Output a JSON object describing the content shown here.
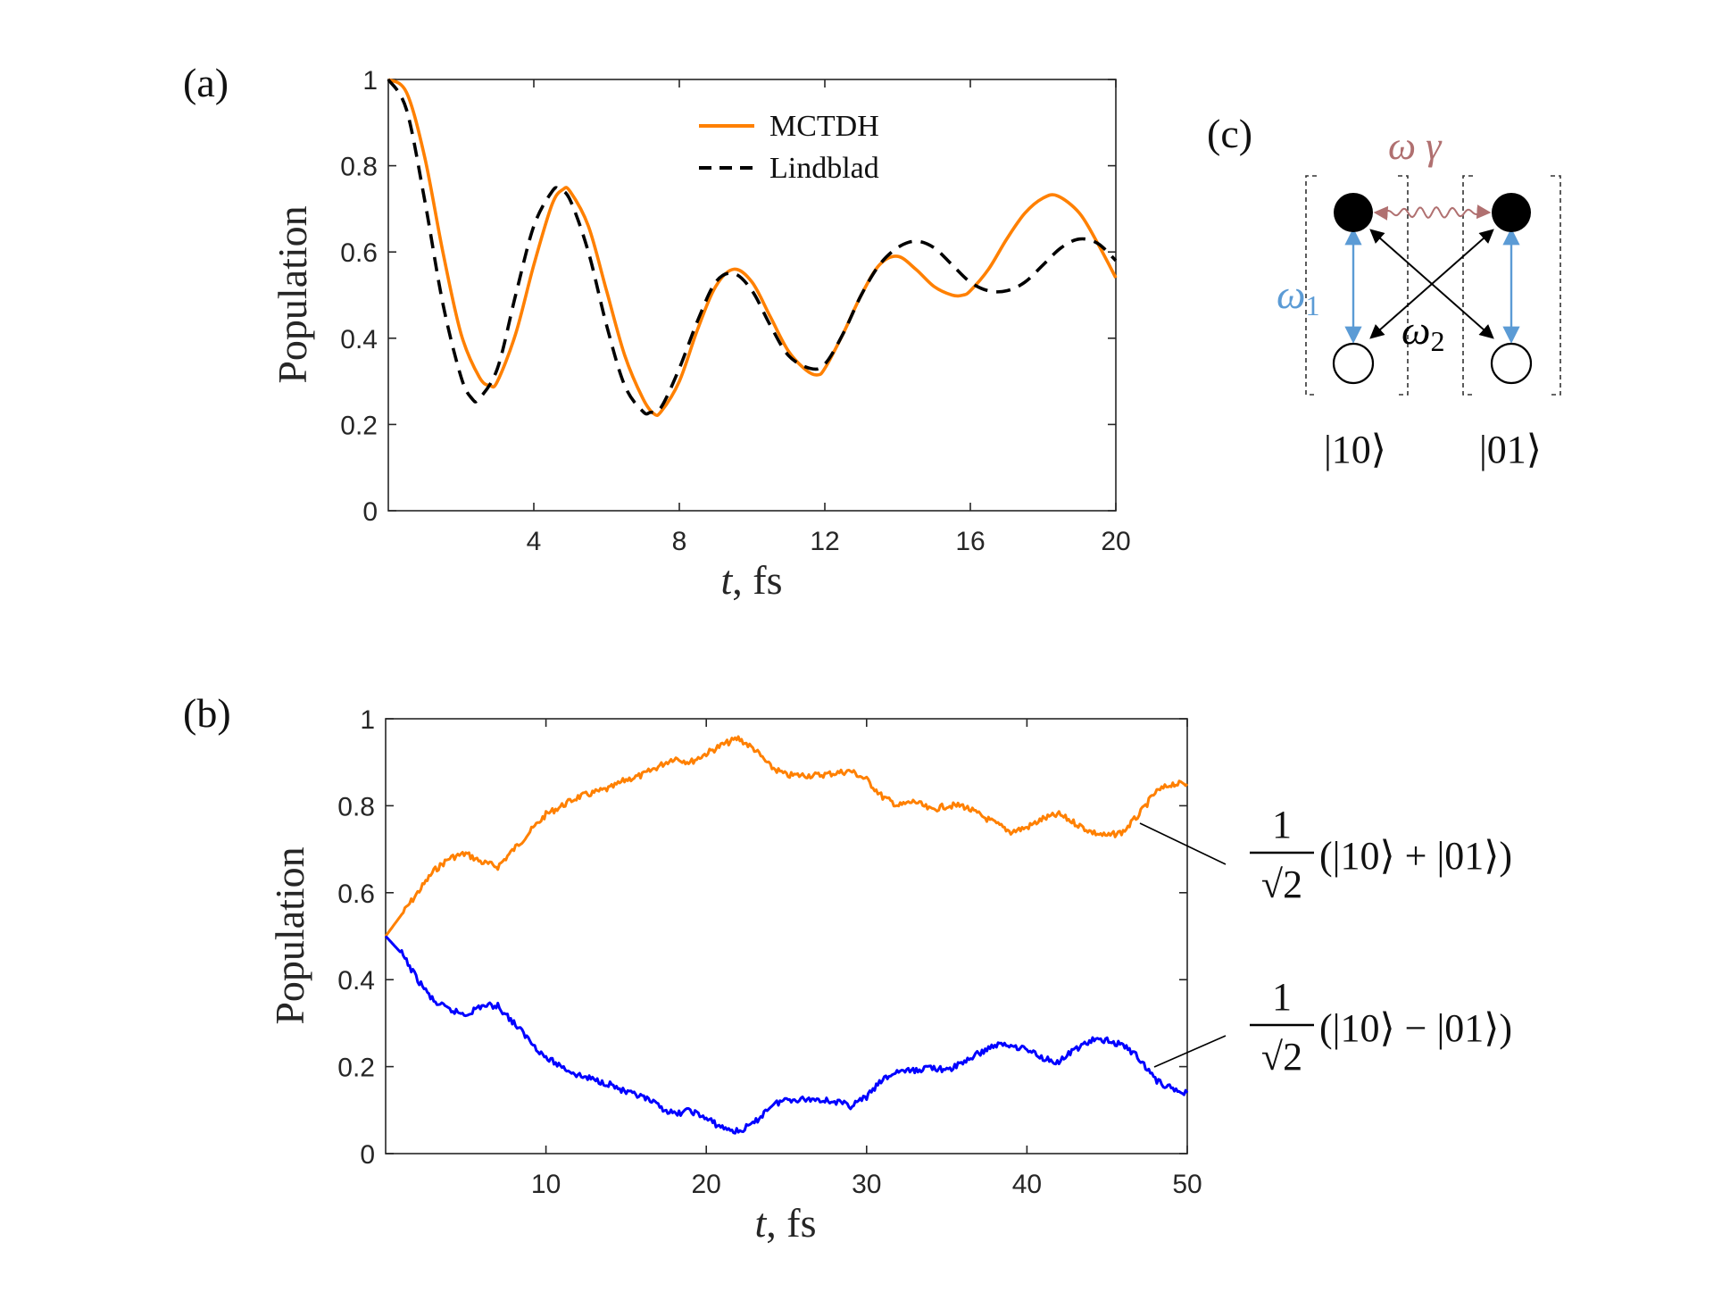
{
  "colors": {
    "mctdh": "#FF8000",
    "lindblad": "#000000",
    "symmetric": "#FF8000",
    "antisymmetric": "#0000FF",
    "omega1": "#5B9BD5",
    "omega_gamma": "#B07070",
    "omega2": "#000000"
  },
  "chart_data": [
    {
      "id": "a",
      "type": "line",
      "panel_label": "(a)",
      "xlabel": "t, fs",
      "xlabel_var": "t",
      "xlabel_unit": "fs",
      "ylabel": "Population",
      "xlim": [
        0,
        20
      ],
      "ylim": [
        0,
        1
      ],
      "xticks": [
        4,
        8,
        12,
        16,
        20
      ],
      "yticks": [
        0,
        0.2,
        0.4,
        0.6,
        0.8,
        1
      ],
      "xtick_labels": [
        "4",
        "8",
        "12",
        "16",
        "20"
      ],
      "ytick_labels": [
        "0",
        "0.2",
        "0.4",
        "0.6",
        "0.8",
        "1"
      ],
      "legend": [
        "MCTDH",
        "Lindblad"
      ],
      "legend_position": "top-center",
      "series": [
        {
          "name": "MCTDH",
          "style": "solid",
          "x": [
            0,
            0.5,
            1,
            1.5,
            2,
            2.5,
            2.8,
            3,
            3.5,
            4,
            4.5,
            4.8,
            5,
            5.5,
            6,
            6.5,
            7,
            7.3,
            7.5,
            8,
            8.5,
            9,
            9.5,
            10,
            10.5,
            11,
            11.5,
            11.8,
            12,
            12.5,
            13,
            13.5,
            14,
            14.5,
            15,
            15.5,
            15.8,
            16,
            16.5,
            17,
            17.5,
            18,
            18.4,
            19,
            19.5,
            20
          ],
          "y": [
            1.0,
            0.97,
            0.82,
            0.6,
            0.41,
            0.31,
            0.29,
            0.3,
            0.41,
            0.57,
            0.71,
            0.745,
            0.74,
            0.66,
            0.51,
            0.36,
            0.26,
            0.225,
            0.23,
            0.3,
            0.42,
            0.52,
            0.56,
            0.53,
            0.45,
            0.37,
            0.325,
            0.315,
            0.33,
            0.41,
            0.5,
            0.57,
            0.59,
            0.56,
            0.52,
            0.5,
            0.5,
            0.51,
            0.56,
            0.63,
            0.69,
            0.725,
            0.73,
            0.69,
            0.62,
            0.54
          ]
        },
        {
          "name": "Lindblad",
          "style": "dashed",
          "x": [
            0,
            0.5,
            1,
            1.5,
            2,
            2.3,
            2.5,
            3,
            3.5,
            4,
            4.5,
            4.7,
            5,
            5.5,
            6,
            6.5,
            7,
            7.2,
            7.5,
            8,
            8.5,
            9,
            9.5,
            10,
            10.5,
            11,
            11.6,
            12,
            12.5,
            13,
            13.5,
            14,
            14.5,
            15,
            15.5,
            16,
            16.5,
            17,
            17.5,
            18,
            18.5,
            19,
            19.5,
            20
          ],
          "y": [
            1.0,
            0.93,
            0.72,
            0.48,
            0.31,
            0.26,
            0.26,
            0.33,
            0.5,
            0.66,
            0.74,
            0.745,
            0.72,
            0.6,
            0.43,
            0.29,
            0.23,
            0.228,
            0.24,
            0.33,
            0.44,
            0.53,
            0.55,
            0.51,
            0.43,
            0.36,
            0.33,
            0.34,
            0.41,
            0.5,
            0.57,
            0.61,
            0.625,
            0.61,
            0.57,
            0.53,
            0.51,
            0.51,
            0.53,
            0.57,
            0.61,
            0.63,
            0.62,
            0.58
          ]
        }
      ]
    },
    {
      "id": "b",
      "type": "line",
      "panel_label": "(b)",
      "xlabel": "t, fs",
      "xlabel_var": "t",
      "xlabel_unit": "fs",
      "ylabel": "Population",
      "xlim": [
        0,
        50
      ],
      "ylim": [
        0,
        1
      ],
      "xticks": [
        10,
        20,
        30,
        40,
        50
      ],
      "yticks": [
        0,
        0.2,
        0.4,
        0.6,
        0.8,
        1
      ],
      "xtick_labels": [
        "10",
        "20",
        "30",
        "40",
        "50"
      ],
      "ytick_labels": [
        "0",
        "0.2",
        "0.4",
        "0.6",
        "0.8",
        "1"
      ],
      "series": [
        {
          "name": "1/√2 (|10⟩ + |01⟩)",
          "style": "solid",
          "x": [
            0,
            1,
            2,
            3,
            4,
            5,
            6,
            7,
            8,
            9,
            10,
            11,
            12,
            13,
            14,
            15,
            16,
            17,
            18,
            19,
            20,
            21,
            22,
            23,
            24,
            25,
            26,
            27,
            28,
            29,
            30,
            31,
            32,
            33,
            34,
            35,
            36,
            37,
            38,
            39,
            40,
            41,
            42,
            43,
            44,
            45,
            46,
            47,
            48,
            49,
            50
          ],
          "y": [
            0.5,
            0.55,
            0.6,
            0.65,
            0.68,
            0.69,
            0.67,
            0.66,
            0.7,
            0.74,
            0.78,
            0.8,
            0.82,
            0.83,
            0.84,
            0.86,
            0.87,
            0.89,
            0.91,
            0.9,
            0.92,
            0.94,
            0.955,
            0.93,
            0.89,
            0.87,
            0.87,
            0.87,
            0.875,
            0.88,
            0.86,
            0.82,
            0.8,
            0.81,
            0.79,
            0.8,
            0.8,
            0.78,
            0.76,
            0.74,
            0.75,
            0.77,
            0.78,
            0.76,
            0.74,
            0.73,
            0.74,
            0.78,
            0.83,
            0.85,
            0.85
          ]
        },
        {
          "name": "1/√2 (|10⟩ − |01⟩)",
          "style": "solid",
          "x": [
            0,
            1,
            2,
            3,
            4,
            5,
            6,
            7,
            8,
            9,
            10,
            11,
            12,
            13,
            14,
            15,
            16,
            17,
            18,
            19,
            20,
            21,
            22,
            23,
            24,
            25,
            26,
            27,
            28,
            29,
            30,
            31,
            32,
            33,
            34,
            35,
            36,
            37,
            38,
            39,
            40,
            41,
            42,
            43,
            44,
            45,
            46,
            47,
            48,
            49,
            50
          ],
          "y": [
            0.5,
            0.46,
            0.4,
            0.35,
            0.33,
            0.32,
            0.34,
            0.34,
            0.3,
            0.26,
            0.22,
            0.2,
            0.18,
            0.17,
            0.16,
            0.14,
            0.13,
            0.11,
            0.09,
            0.1,
            0.08,
            0.06,
            0.05,
            0.07,
            0.11,
            0.125,
            0.125,
            0.125,
            0.12,
            0.11,
            0.13,
            0.17,
            0.19,
            0.19,
            0.2,
            0.19,
            0.21,
            0.23,
            0.25,
            0.25,
            0.24,
            0.22,
            0.21,
            0.24,
            0.26,
            0.26,
            0.25,
            0.22,
            0.17,
            0.15,
            0.14
          ]
        }
      ],
      "annotations": {
        "upper": {
          "numerator": "1",
          "denominator": "√2",
          "expression": "(|10⟩ + |01⟩)"
        },
        "lower": {
          "numerator": "1",
          "denominator": "√2",
          "expression": "(|10⟩ − |01⟩)"
        }
      }
    }
  ],
  "diagram_c": {
    "panel_label": "(c)",
    "omega_gamma_label": "ω γ",
    "omega1_label": "ω",
    "omega1_subscript": "1",
    "omega2_label": "ω",
    "omega2_subscript": "2",
    "ket_left": "|10⟩",
    "ket_right": "|01⟩"
  }
}
